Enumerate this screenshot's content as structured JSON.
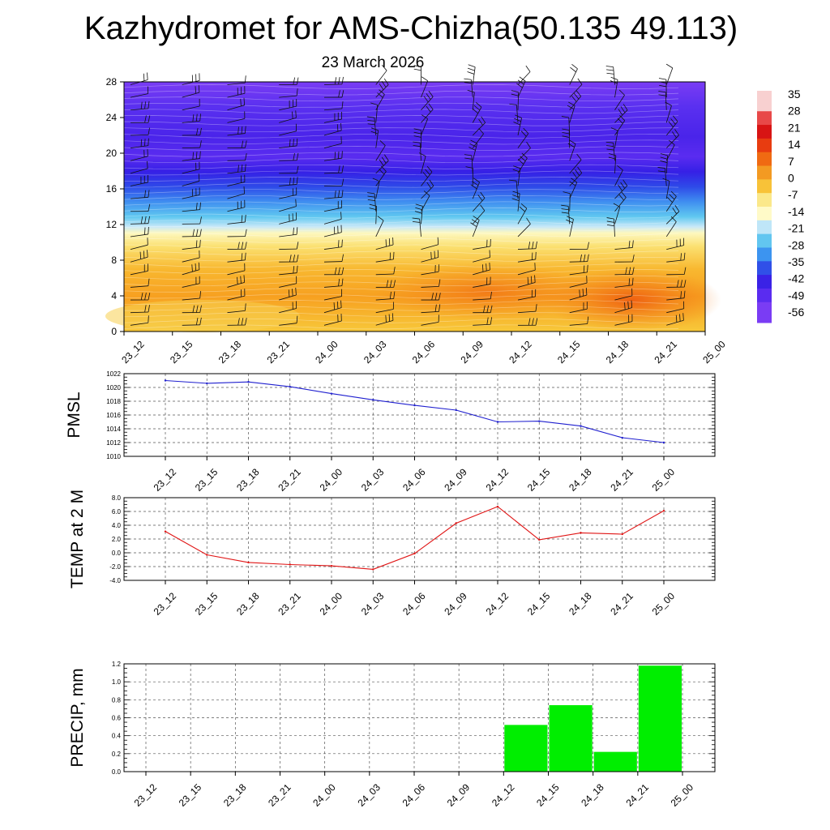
{
  "title": "Kazhydromet for AMS-Chizha(50.135 49.113)",
  "subtitle": "23 March 2026",
  "colors": {
    "pmsl_line": "#1f1fcf",
    "temp_line": "#e01414",
    "precip_bar": "#00ee00"
  },
  "chart_data": [
    {
      "type": "heatmap",
      "name": "temperature-wind cross-section",
      "x_ticks": [
        "23_12",
        "23_15",
        "23_18",
        "23_21",
        "24_00",
        "24_03",
        "24_06",
        "24_09",
        "24_12",
        "24_15",
        "24_18",
        "24_21",
        "25_00"
      ],
      "y_ticks": [
        "0",
        "4",
        "8",
        "12",
        "16",
        "20",
        "24",
        "28"
      ],
      "ylim": [
        0,
        28
      ],
      "colorbar_labels": [
        "35",
        "28",
        "21",
        "14",
        "7",
        "0",
        "-7",
        "-14",
        "-21",
        "-28",
        "-35",
        "-42",
        "-49",
        "-56"
      ],
      "colorbar_range": [
        -60,
        40
      ]
    },
    {
      "type": "line",
      "ylabel": "PMSL",
      "categories": [
        "23_12",
        "23_15",
        "23_18",
        "23_21",
        "24_00",
        "24_03",
        "24_06",
        "24_09",
        "24_12",
        "24_15",
        "24_18",
        "24_21",
        "25_00"
      ],
      "values": [
        1021.0,
        1020.6,
        1020.8,
        1020.1,
        1019.1,
        1018.2,
        1017.4,
        1016.7,
        1015.0,
        1015.1,
        1014.4,
        1012.7,
        1012.0
      ],
      "ylim": [
        1010,
        1022
      ],
      "y_ticks": [
        "1010",
        "1012",
        "1014",
        "1016",
        "1018",
        "1020",
        "1022"
      ]
    },
    {
      "type": "line",
      "ylabel": "TEMP at 2 M",
      "categories": [
        "23_12",
        "23_15",
        "23_18",
        "23_21",
        "24_00",
        "24_03",
        "24_06",
        "24_09",
        "24_12",
        "24_15",
        "24_18",
        "24_21",
        "25_00"
      ],
      "values": [
        3.1,
        -0.3,
        -1.4,
        -1.7,
        -1.9,
        -2.4,
        -0.1,
        4.3,
        6.7,
        1.9,
        2.9,
        2.7,
        6.1
      ],
      "ylim": [
        -4,
        8
      ],
      "y_ticks": [
        "-4.0",
        "-2.0",
        "0.0",
        "2.0",
        "4.0",
        "6.0",
        "8.0"
      ]
    },
    {
      "type": "bar",
      "ylabel": "PRECIP, mm",
      "categories": [
        "23_12",
        "23_15",
        "23_18",
        "23_21",
        "24_00",
        "24_03",
        "24_06",
        "24_09",
        "24_12",
        "24_15",
        "24_18",
        "24_21",
        "25_00"
      ],
      "values": [
        0,
        0,
        0,
        0,
        0,
        0,
        0,
        0,
        0,
        0.52,
        0.74,
        0.22,
        1.18
      ],
      "ylim": [
        0,
        1.2
      ],
      "y_ticks": [
        "0.0",
        "0.2",
        "0.4",
        "0.6",
        "0.8",
        "1.0",
        "1.2"
      ]
    }
  ]
}
